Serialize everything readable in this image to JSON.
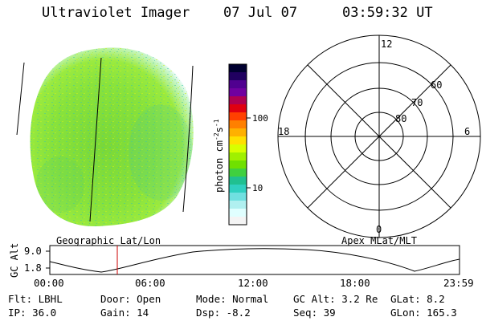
{
  "header": {
    "title": "Ultraviolet Imager",
    "date": "07 Jul 07",
    "time": "03:59:32 UT"
  },
  "colorbar": {
    "label": "photon cm",
    "label_sup1": "-2",
    "label_mid": "s",
    "label_sup2": "-1",
    "ticks": [
      "100",
      "10"
    ],
    "colors": [
      "#000030",
      "#200060",
      "#500090",
      "#7000a0",
      "#b00050",
      "#e00010",
      "#ff4000",
      "#ff8000",
      "#ffb000",
      "#ffe000",
      "#d8ff00",
      "#a0f000",
      "#70e000",
      "#40d040",
      "#20c090",
      "#30d0c0",
      "#70e0e0",
      "#b0f0f0",
      "#e0ffff",
      "#f4f4f4"
    ]
  },
  "polar": {
    "labels_mlt": [
      "12",
      "18",
      "6",
      "0"
    ],
    "labels_lat": [
      "60",
      "70",
      "80"
    ]
  },
  "timeline": {
    "ylabel": "GC Alt",
    "yticks": [
      "9.0",
      "1.8"
    ],
    "left_label": "Geographic Lat/Lon",
    "right_label": "Apex MLat/MLT",
    "xticks": [
      "00:00",
      "06:00",
      "12:00",
      "18:00",
      "23:59"
    ]
  },
  "info": {
    "flt": "Flt: LBHL",
    "door": "Door: Open",
    "mode": "Mode: Normal",
    "gcalt": "GC Alt: 3.2 Re",
    "glat": "GLat:  8.2",
    "ip": "IP: 36.0",
    "gain": "Gain: 14",
    "dsp": "Dsp:  -8.2",
    "seq": "Seq: 39",
    "glon": "GLon: 165.3"
  },
  "colors": {
    "disk_base": "#86e23a",
    "disk_edge": "#f2fbff",
    "marker": "#cc0000"
  }
}
